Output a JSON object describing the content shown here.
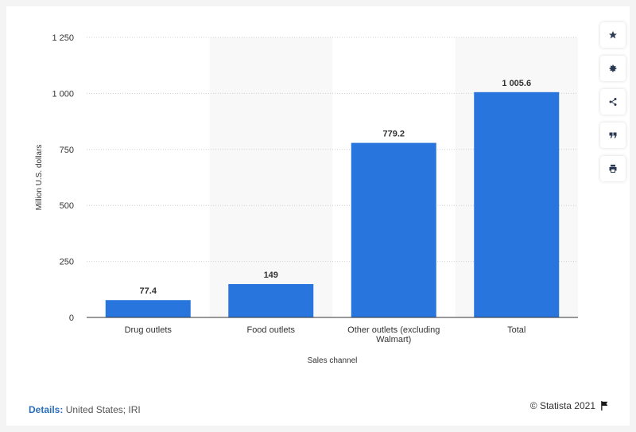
{
  "chart_data": {
    "type": "bar",
    "categories": [
      "Drug outlets",
      "Food outlets",
      "Other outlets (excluding Walmart)",
      "Total"
    ],
    "category_lines": [
      [
        "Drug outlets"
      ],
      [
        "Food outlets"
      ],
      [
        "Other outlets (excluding",
        "Walmart)"
      ],
      [
        "Total"
      ]
    ],
    "values": [
      77.4,
      149,
      779.2,
      1005.6
    ],
    "value_labels": [
      "77.4",
      "149",
      "779.2",
      "1 005.6"
    ],
    "ylabel": "Million U.S. dollars",
    "xlabel": "Sales channel",
    "ylim": [
      0,
      1250
    ],
    "yticks": [
      0,
      250,
      500,
      750,
      1000,
      1250
    ],
    "ytick_labels": [
      "0",
      "250",
      "500",
      "750",
      "1 000",
      "1 250"
    ],
    "bar_color": "#2876dd",
    "grid": true,
    "legend": "none"
  },
  "footer": {
    "details_label": "Details:",
    "details_value": "United States; IRI",
    "credit": "© Statista 2021"
  },
  "toolbar": {
    "icons": [
      "star-icon",
      "gear-icon",
      "share-icon",
      "quote-icon",
      "print-icon"
    ]
  }
}
